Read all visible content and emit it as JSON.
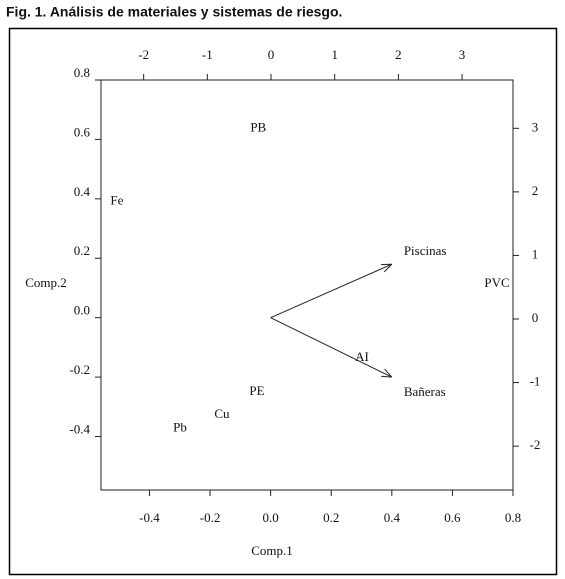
{
  "chart_data": {
    "type": "biplot",
    "title": "Fig. 1. Análisis de materiales y sistemas de riesgo.",
    "xlabel": "Comp.1",
    "ylabel": "Comp.2",
    "xlim": [
      -0.56,
      0.8
    ],
    "ylim": [
      -0.58,
      0.8
    ],
    "xticks": [
      -0.4,
      -0.2,
      {
        "value": 0,
        "label": "0.0"
      },
      0.2,
      0.4,
      0.6,
      0.8
    ],
    "yticks": [
      -0.4,
      -0.2,
      {
        "value": 0,
        "label": "0.0"
      },
      0.2,
      0.4,
      0.6,
      0.8
    ],
    "x2lim": [
      -2.67,
      3.8
    ],
    "y2lim": [
      -2.69,
      3.76
    ],
    "x2ticks": [
      -2,
      -1,
      0,
      1,
      2,
      3
    ],
    "y2ticks": [
      -2,
      -1,
      0,
      1,
      2,
      3
    ],
    "points": {
      "labels": [
        "PB",
        "Fe",
        "PVC",
        "PE",
        "Cu",
        "Pb"
      ],
      "x": [
        -0.2,
        -2.42,
        3.55,
        -0.22,
        -0.77,
        -1.43
      ],
      "y": [
        3.0,
        1.85,
        0.55,
        -1.15,
        -1.51,
        -1.72
      ]
    },
    "loadings": {
      "labels": [
        "Piscinas",
        "Bañeras"
      ],
      "x": [
        0.4,
        0.4
      ],
      "y": [
        0.18,
        -0.2
      ]
    },
    "annotation": "AI",
    "color": "#222222"
  }
}
